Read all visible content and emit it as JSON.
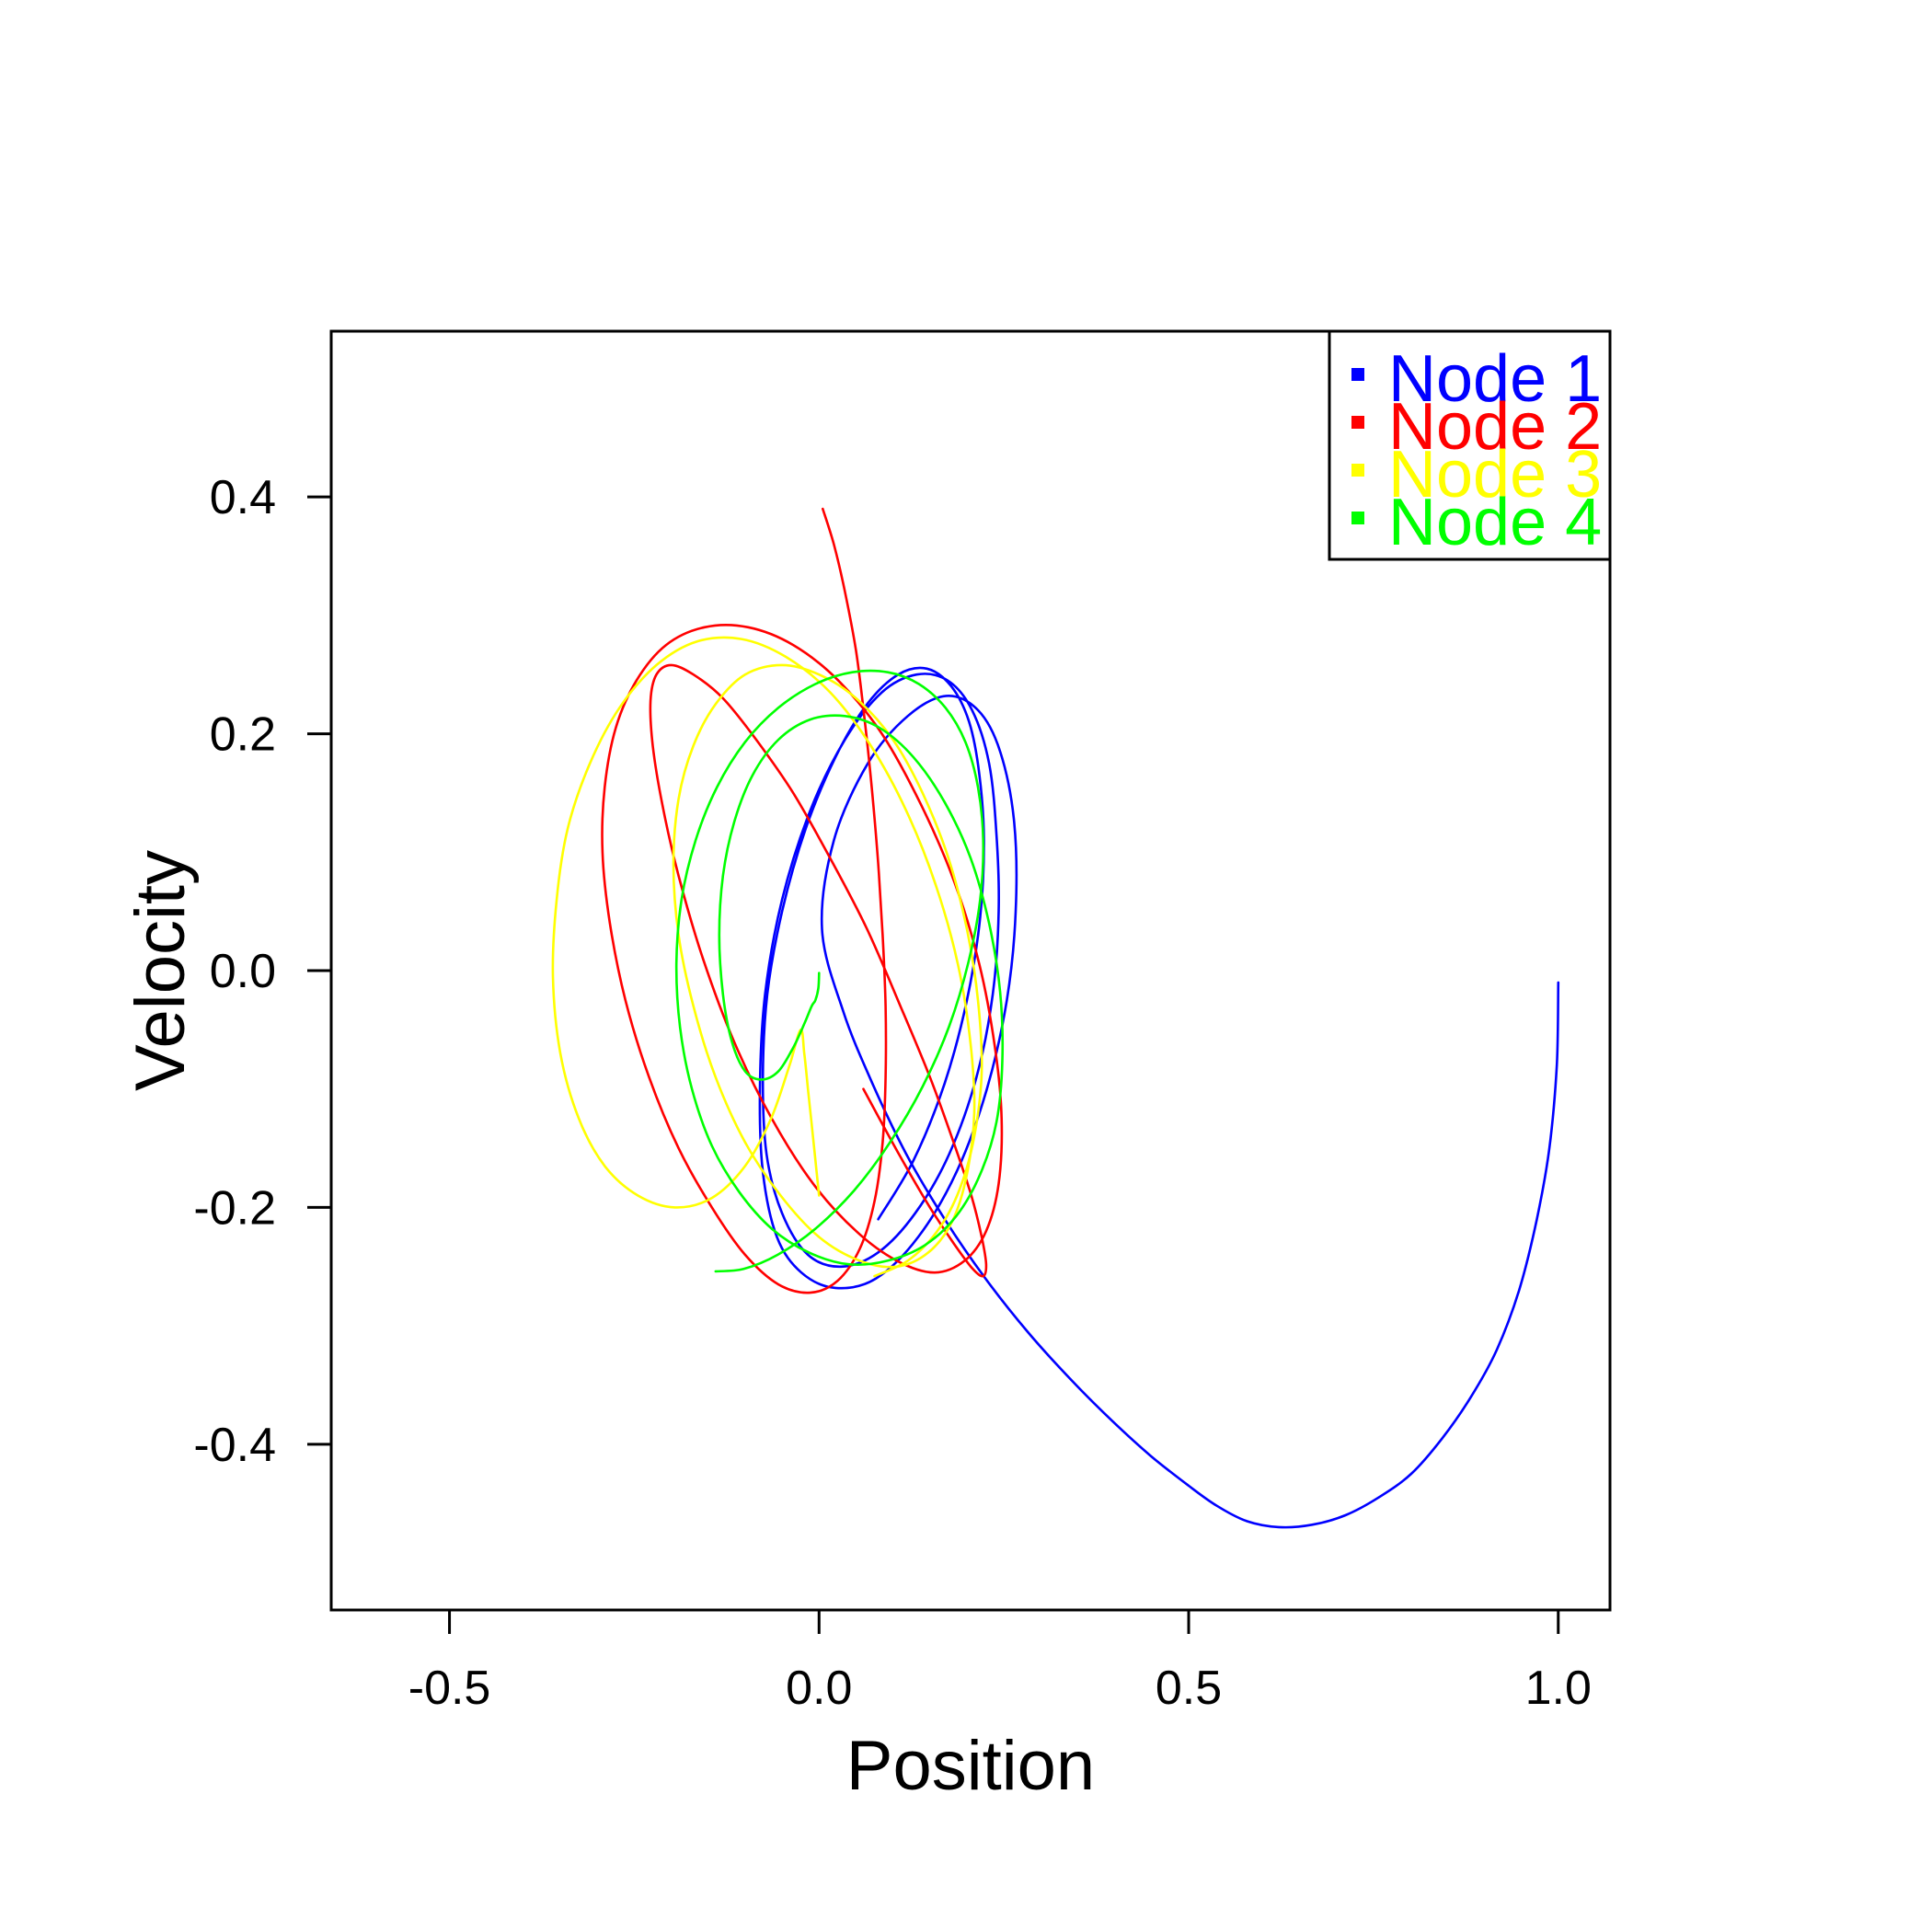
{
  "chart_data": {
    "type": "line",
    "title": "",
    "xlabel": "Position",
    "ylabel": "Velocity",
    "xlim": [
      -0.66,
      1.07
    ],
    "ylim": [
      -0.54,
      0.54
    ],
    "x_ticks": [
      -0.5,
      0.0,
      0.5,
      1.0
    ],
    "x_tick_labels": [
      "-0.5",
      "0.0",
      "0.5",
      "1.0"
    ],
    "y_ticks": [
      -0.4,
      -0.2,
      0.0,
      0.2,
      0.4
    ],
    "y_tick_labels": [
      "-0.4",
      "-0.2",
      "0.0",
      "0.2",
      "0.4"
    ],
    "grid": false,
    "legend_position": "top-right",
    "series": [
      {
        "name": "Node 1",
        "color": "#0000ff",
        "x": [
          1.0,
          0.998,
          0.988,
          0.971,
          0.947,
          0.917,
          0.882,
          0.843,
          0.801,
          0.757,
          0.712,
          0.667,
          0.622,
          0.579,
          0.538,
          0.5,
          0.449,
          0.396,
          0.34,
          0.282,
          0.225,
          0.17,
          0.118,
          0.072,
          0.033,
          0.004,
          0.02,
          0.066,
          0.12,
          0.172,
          0.215,
          0.245,
          0.264,
          0.266,
          0.254,
          0.227,
          0.186,
          0.134,
          0.077,
          0.022,
          -0.024,
          -0.057,
          -0.076,
          -0.08,
          -0.073,
          -0.05,
          -0.012,
          0.035,
          0.085,
          0.132,
          0.174,
          0.207,
          0.23,
          0.24,
          0.243,
          0.235,
          0.213,
          0.176,
          0.13,
          0.08,
          0.03,
          -0.015,
          -0.05,
          -0.071,
          -0.076,
          -0.07,
          -0.05,
          -0.018,
          0.022,
          0.065,
          0.107,
          0.146,
          0.179,
          0.203,
          0.217,
          0.223,
          0.218,
          0.2,
          0.17,
          0.128,
          0.08
        ],
        "y": [
          -0.01,
          -0.08,
          -0.15,
          -0.21,
          -0.27,
          -0.32,
          -0.36,
          -0.395,
          -0.425,
          -0.445,
          -0.46,
          -0.468,
          -0.47,
          -0.465,
          -0.452,
          -0.435,
          -0.41,
          -0.38,
          -0.345,
          -0.305,
          -0.26,
          -0.21,
          -0.155,
          -0.095,
          -0.035,
          0.035,
          0.11,
          0.175,
          0.215,
          0.232,
          0.22,
          0.185,
          0.125,
          0.05,
          -0.025,
          -0.1,
          -0.17,
          -0.225,
          -0.26,
          -0.268,
          -0.255,
          -0.225,
          -0.17,
          -0.1,
          -0.02,
          0.06,
          0.135,
          0.195,
          0.235,
          0.25,
          0.245,
          0.22,
          0.175,
          0.115,
          0.05,
          -0.02,
          -0.09,
          -0.155,
          -0.205,
          -0.238,
          -0.25,
          -0.24,
          -0.205,
          -0.155,
          -0.09,
          -0.02,
          0.05,
          0.12,
          0.18,
          0.225,
          0.25,
          0.255,
          0.24,
          0.21,
          0.165,
          0.11,
          0.045,
          -0.025,
          -0.095,
          -0.16,
          -0.21
        ]
      },
      {
        "name": "Node 2",
        "color": "#ff0000",
        "x": [
          0.005,
          0.02,
          0.035,
          0.05,
          0.062,
          0.072,
          0.08,
          0.086,
          0.09,
          0.09,
          0.086,
          0.075,
          0.055,
          0.025,
          -0.012,
          -0.055,
          -0.1,
          -0.145,
          -0.19,
          -0.23,
          -0.262,
          -0.283,
          -0.293,
          -0.29,
          -0.275,
          -0.247,
          -0.207,
          -0.155,
          -0.096,
          -0.035,
          0.026,
          0.085,
          0.138,
          0.183,
          0.217,
          0.238,
          0.247,
          0.243,
          0.226,
          0.197,
          0.156,
          0.105,
          0.05,
          -0.008,
          -0.064,
          -0.115,
          -0.157,
          -0.19,
          -0.212,
          -0.225,
          -0.228,
          -0.22,
          -0.2,
          -0.17,
          -0.13,
          -0.085,
          -0.035,
          0.015,
          0.065,
          0.11,
          0.15,
          0.182,
          0.206,
          0.22,
          0.226,
          0.222,
          0.208,
          0.184,
          0.15,
          0.108,
          0.06
        ],
        "y": [
          0.39,
          0.36,
          0.32,
          0.27,
          0.21,
          0.15,
          0.09,
          0.03,
          -0.03,
          -0.09,
          -0.145,
          -0.195,
          -0.235,
          -0.262,
          -0.272,
          -0.265,
          -0.24,
          -0.2,
          -0.15,
          -0.09,
          -0.025,
          0.04,
          0.1,
          0.155,
          0.205,
          0.245,
          0.275,
          0.29,
          0.29,
          0.275,
          0.245,
          0.2,
          0.14,
          0.075,
          0.005,
          -0.065,
          -0.125,
          -0.18,
          -0.22,
          -0.245,
          -0.255,
          -0.245,
          -0.22,
          -0.18,
          -0.125,
          -0.06,
          0.01,
          0.08,
          0.14,
          0.19,
          0.228,
          0.25,
          0.258,
          0.25,
          0.23,
          0.195,
          0.15,
          0.095,
          0.035,
          -0.03,
          -0.09,
          -0.145,
          -0.19,
          -0.225,
          -0.248,
          -0.258,
          -0.252,
          -0.232,
          -0.2,
          -0.155,
          -0.1
        ]
      },
      {
        "name": "Node 3",
        "color": "#ffff00",
        "x": [
          0.0,
          -0.005,
          -0.01,
          -0.015,
          -0.02,
          -0.025,
          -0.04,
          -0.065,
          -0.1,
          -0.145,
          -0.195,
          -0.245,
          -0.29,
          -0.325,
          -0.35,
          -0.36,
          -0.355,
          -0.34,
          -0.31,
          -0.27,
          -0.22,
          -0.165,
          -0.105,
          -0.045,
          0.015,
          0.07,
          0.118,
          0.158,
          0.188,
          0.205,
          0.21,
          0.2,
          0.18,
          0.148,
          0.105,
          0.055,
          0.0,
          -0.052,
          -0.1,
          -0.14,
          -0.17,
          -0.19,
          -0.197,
          -0.19,
          -0.17,
          -0.14,
          -0.1,
          -0.05,
          0.0,
          0.05,
          0.1,
          0.14,
          0.175,
          0.2,
          0.215,
          0.22,
          0.21,
          0.19,
          0.16,
          0.12,
          0.075
        ],
        "y": [
          -0.19,
          -0.16,
          -0.13,
          -0.1,
          -0.07,
          -0.05,
          -0.08,
          -0.125,
          -0.165,
          -0.192,
          -0.2,
          -0.19,
          -0.165,
          -0.125,
          -0.07,
          -0.005,
          0.06,
          0.12,
          0.175,
          0.222,
          0.258,
          0.278,
          0.28,
          0.265,
          0.235,
          0.19,
          0.135,
          0.072,
          0.005,
          -0.062,
          -0.12,
          -0.172,
          -0.212,
          -0.238,
          -0.25,
          -0.245,
          -0.225,
          -0.19,
          -0.145,
          -0.09,
          -0.03,
          0.03,
          0.09,
          0.145,
          0.19,
          0.225,
          0.25,
          0.258,
          0.25,
          0.23,
          0.195,
          0.15,
          0.095,
          0.035,
          -0.025,
          -0.085,
          -0.14,
          -0.185,
          -0.22,
          -0.245,
          -0.258
        ]
      },
      {
        "name": "Node 4",
        "color": "#00ff00",
        "x": [
          0.0,
          -0.001,
          -0.005,
          -0.01,
          -0.02,
          -0.035,
          -0.055,
          -0.078,
          -0.1,
          -0.118,
          -0.13,
          -0.135,
          -0.13,
          -0.115,
          -0.09,
          -0.055,
          -0.012,
          0.035,
          0.082,
          0.128,
          0.17,
          0.205,
          0.23,
          0.245,
          0.248,
          0.24,
          0.218,
          0.186,
          0.143,
          0.093,
          0.04,
          -0.014,
          -0.064,
          -0.108,
          -0.145,
          -0.172,
          -0.188,
          -0.193,
          -0.186,
          -0.167,
          -0.138,
          -0.1,
          -0.055,
          -0.005,
          0.045,
          0.093,
          0.135,
          0.171,
          0.198,
          0.215,
          0.222,
          0.218,
          0.202,
          0.176,
          0.14,
          0.096,
          0.047,
          -0.005,
          -0.056,
          -0.102,
          -0.14
        ],
        "y": [
          -0.002,
          -0.015,
          -0.025,
          -0.03,
          -0.045,
          -0.065,
          -0.085,
          -0.092,
          -0.085,
          -0.06,
          -0.02,
          0.03,
          0.08,
          0.125,
          0.165,
          0.195,
          0.212,
          0.215,
          0.205,
          0.18,
          0.142,
          0.095,
          0.04,
          -0.018,
          -0.076,
          -0.128,
          -0.172,
          -0.207,
          -0.232,
          -0.245,
          -0.248,
          -0.238,
          -0.218,
          -0.187,
          -0.148,
          -0.1,
          -0.048,
          0.006,
          0.06,
          0.11,
          0.155,
          0.193,
          0.222,
          0.242,
          0.252,
          0.252,
          0.242,
          0.222,
          0.193,
          0.155,
          0.11,
          0.06,
          0.007,
          -0.047,
          -0.098,
          -0.145,
          -0.186,
          -0.218,
          -0.24,
          -0.252,
          -0.254
        ]
      }
    ]
  }
}
